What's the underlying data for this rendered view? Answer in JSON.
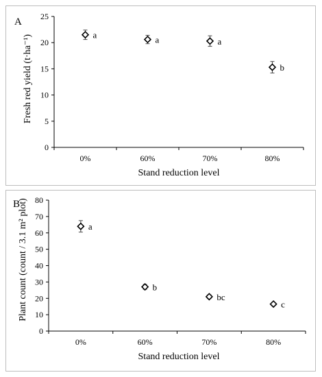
{
  "chart_data": [
    {
      "type": "scatter",
      "panel_label": "A",
      "title": "",
      "xlabel": "Stand reduction level",
      "ylabel": "Fresh red yield (t·ha⁻¹)",
      "categories": [
        "0%",
        "60%",
        "70%",
        "80%"
      ],
      "series": [
        {
          "values": [
            21.5,
            20.6,
            20.3,
            15.3
          ],
          "errors": [
            0.9,
            0.8,
            1.0,
            1.1
          ],
          "annotations": [
            "a",
            "a",
            "a",
            "b"
          ]
        }
      ],
      "ylim": [
        0,
        25
      ],
      "yticks": [
        0,
        5,
        10,
        15,
        20,
        25
      ],
      "grid": false,
      "marker": "diamond",
      "accent_color": "#000000"
    },
    {
      "type": "scatter",
      "panel_label": "B",
      "title": "",
      "xlabel": "Stand reduction level",
      "ylabel": "Plant count (count / 3.1 m² plot)",
      "categories": [
        "0%",
        "60%",
        "70%",
        "80%"
      ],
      "series": [
        {
          "values": [
            64,
            27,
            21,
            16.5
          ],
          "errors": [
            3.5,
            1.5,
            1.2,
            1.0
          ],
          "annotations": [
            "a",
            "b",
            "bc",
            "c"
          ]
        }
      ],
      "ylim": [
        0,
        80
      ],
      "yticks": [
        0,
        10,
        20,
        30,
        40,
        50,
        60,
        70,
        80
      ],
      "grid": false,
      "marker": "diamond",
      "accent_color": "#000000"
    }
  ]
}
